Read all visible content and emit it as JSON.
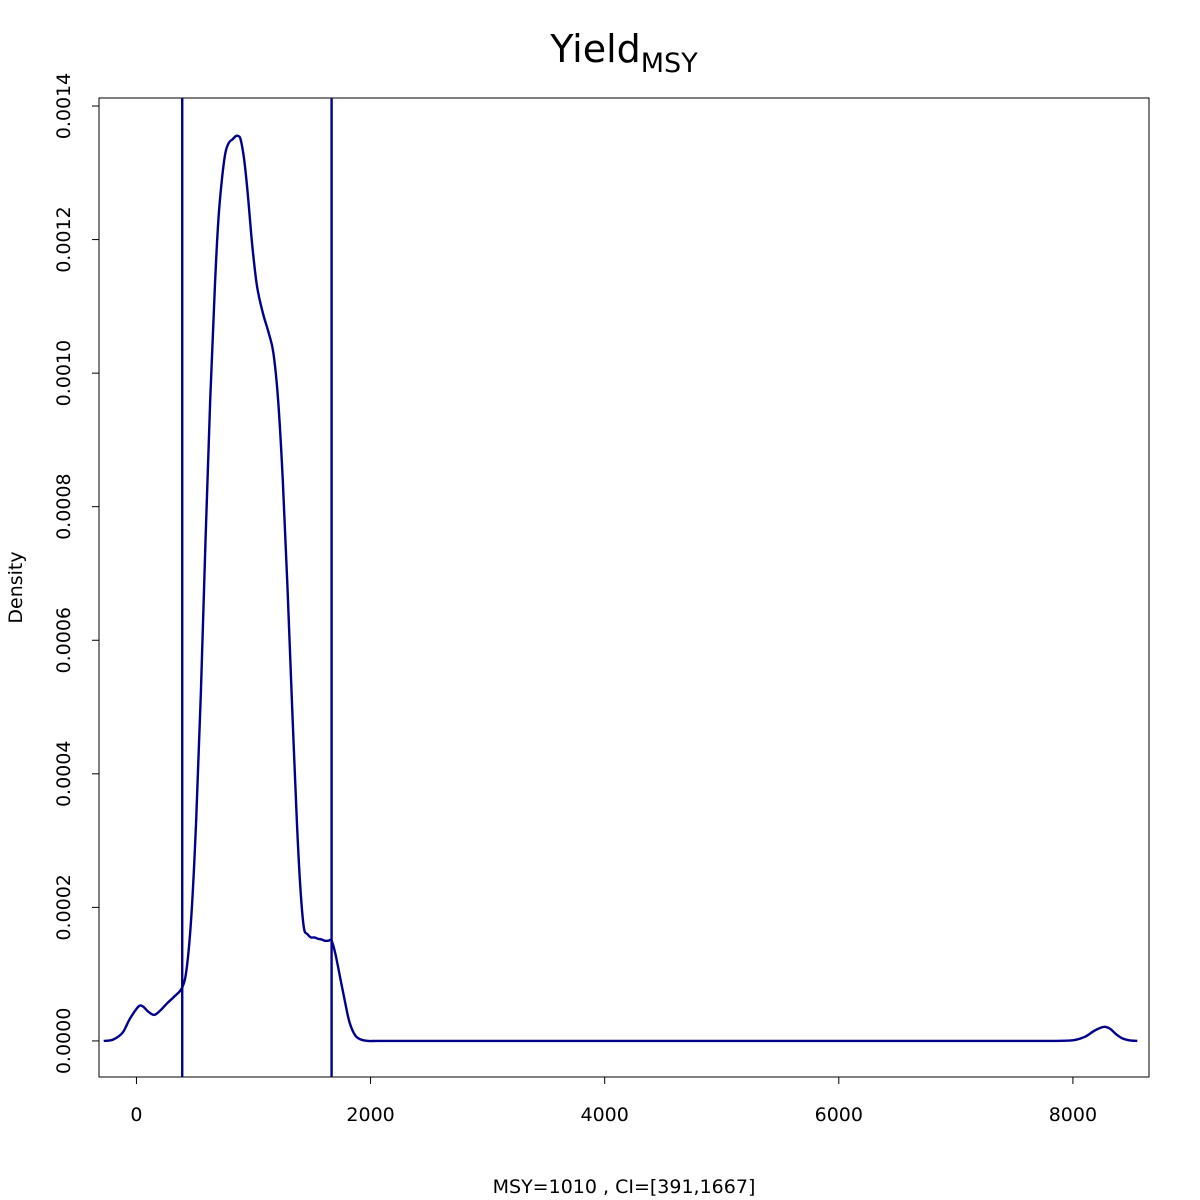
{
  "chart_data": {
    "type": "line",
    "title_main": "Yield",
    "title_sub": "MSY",
    "xlabel": "MSY=1010 , CI=[391,1667]",
    "ylabel": "Density",
    "xlim": [
      -320,
      8650
    ],
    "ylim": [
      -5.4e-05,
      0.001412
    ],
    "x_ticks": [
      0,
      2000,
      4000,
      6000,
      8000
    ],
    "x_tick_labels": [
      "0",
      "2000",
      "4000",
      "6000",
      "8000"
    ],
    "y_ticks": [
      0,
      0.0002,
      0.0004,
      0.0006,
      0.0008,
      0.001,
      0.0012,
      0.0014
    ],
    "y_tick_labels": [
      "0.0000",
      "0.0002",
      "0.0004",
      "0.0006",
      "0.0008",
      "0.0010",
      "0.0012",
      "0.0014"
    ],
    "grid": false,
    "line_color": "#00008B",
    "ci_lines": [
      391,
      1667
    ],
    "series": [
      {
        "x": [
          -280,
          -200,
          -120,
          -60,
          0,
          30,
          60,
          100,
          150,
          200,
          260,
          320,
          391,
          430,
          470,
          510,
          550,
          590,
          630,
          670,
          700,
          730,
          760,
          790,
          820,
          850,
          870,
          890,
          920,
          950,
          990,
          1030,
          1080,
          1130,
          1170,
          1210,
          1250,
          1290,
          1330,
          1370,
          1400,
          1430,
          1460,
          1490,
          1520,
          1550,
          1580,
          1610,
          1640,
          1667,
          1700,
          1740,
          1780,
          1820,
          1870,
          1920,
          1980,
          2050,
          2200,
          3000,
          4000,
          5000,
          6000,
          7000,
          7800,
          8000,
          8100,
          8180,
          8240,
          8280,
          8320,
          8370,
          8420,
          8480,
          8550
        ],
        "y": [
          0,
          2e-06,
          1.2e-05,
          3.2e-05,
          4.8e-05,
          5.3e-05,
          5.1e-05,
          4.4e-05,
          3.9e-05,
          4.5e-05,
          5.6e-05,
          6.6e-05,
          8e-05,
          0.00011,
          0.00019,
          0.00033,
          0.00052,
          0.00075,
          0.00096,
          0.00113,
          0.00123,
          0.00129,
          0.00133,
          0.001345,
          0.00135,
          0.001355,
          0.001355,
          0.00135,
          0.00132,
          0.00127,
          0.00119,
          0.00113,
          0.00109,
          0.00106,
          0.00103,
          0.00096,
          0.00084,
          0.00068,
          0.0005,
          0.00033,
          0.00023,
          0.00017,
          0.00016,
          0.000155,
          0.000155,
          0.000153,
          0.000152,
          0.00015,
          0.00015,
          0.00015,
          0.00013,
          9.5e-05,
          6e-05,
          2.8e-05,
          8e-06,
          2e-06,
          0,
          0,
          0,
          0,
          0,
          0,
          0,
          0,
          0,
          1e-06,
          6e-06,
          1.5e-05,
          2e-05,
          2.1e-05,
          1.8e-05,
          1e-05,
          4e-06,
          1e-06,
          0
        ]
      }
    ]
  }
}
